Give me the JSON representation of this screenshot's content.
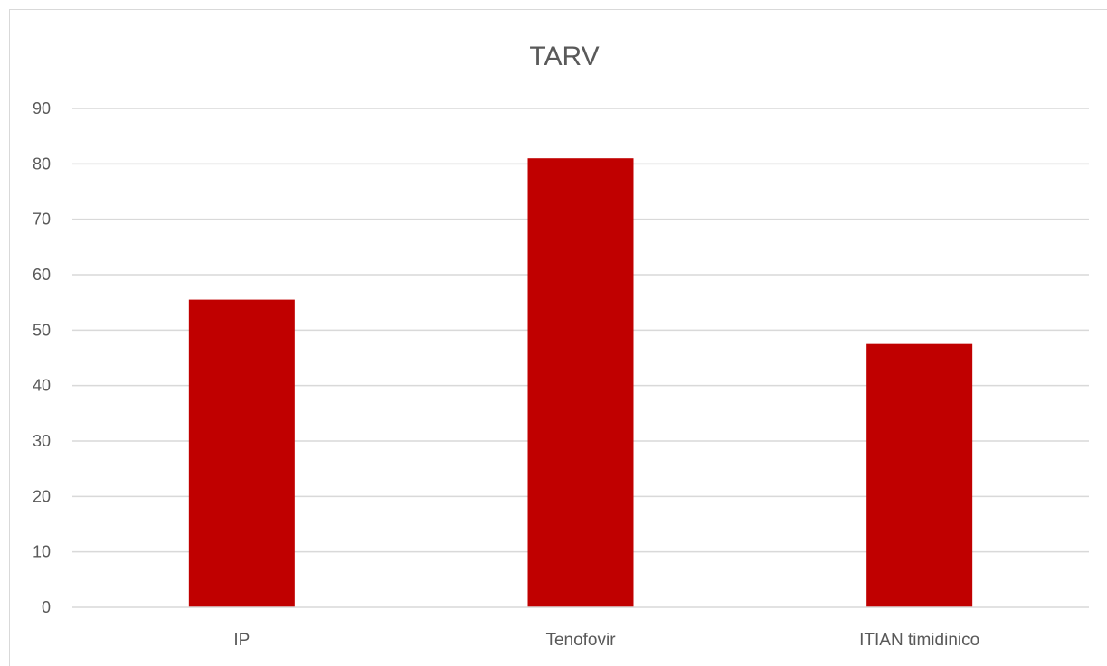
{
  "chart_data": {
    "type": "bar",
    "title": "TARV",
    "xlabel": "",
    "ylabel": "",
    "categories": [
      "IP",
      "Tenofovir",
      "ITIAN timidinico"
    ],
    "values": [
      55.5,
      81,
      47.5
    ],
    "ylim": [
      0,
      90
    ],
    "yticks": [
      "0",
      "10",
      "20",
      "30",
      "40",
      "50",
      "60",
      "70",
      "80",
      "90"
    ],
    "grid": true,
    "legend": "none",
    "bar_color": "#c00000"
  }
}
